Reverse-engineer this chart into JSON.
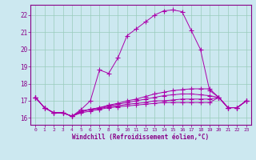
{
  "xlabel": "Windchill (Refroidissement éolien,°C)",
  "background_color": "#cce8f0",
  "grid_color": "#99ccbb",
  "line_color": "#aa00aa",
  "spine_color": "#880088",
  "tick_color": "#880088",
  "xlim": [
    -0.5,
    23.5
  ],
  "ylim": [
    15.6,
    22.6
  ],
  "yticks": [
    16,
    17,
    18,
    19,
    20,
    21,
    22
  ],
  "xticks": [
    0,
    1,
    2,
    3,
    4,
    5,
    6,
    7,
    8,
    9,
    10,
    11,
    12,
    13,
    14,
    15,
    16,
    17,
    18,
    19,
    20,
    21,
    22,
    23
  ],
  "series": [
    [
      17.2,
      16.6,
      16.3,
      16.3,
      16.1,
      16.5,
      17.0,
      18.8,
      18.6,
      19.5,
      20.8,
      21.2,
      21.6,
      22.0,
      22.25,
      22.3,
      22.2,
      21.1,
      20.0,
      17.6,
      17.2,
      16.6,
      16.6,
      17.0
    ],
    [
      17.2,
      16.6,
      16.3,
      16.3,
      16.1,
      16.4,
      16.5,
      16.6,
      16.75,
      16.85,
      17.0,
      17.1,
      17.25,
      17.4,
      17.5,
      17.6,
      17.65,
      17.7,
      17.7,
      17.7,
      17.2,
      16.6,
      16.6,
      17.0
    ],
    [
      17.2,
      16.6,
      16.3,
      16.3,
      16.1,
      16.4,
      16.5,
      16.6,
      16.7,
      16.8,
      16.9,
      17.0,
      17.1,
      17.2,
      17.3,
      17.35,
      17.4,
      17.4,
      17.35,
      17.3,
      17.2,
      16.6,
      16.6,
      17.0
    ],
    [
      17.2,
      16.6,
      16.3,
      16.3,
      16.1,
      16.35,
      16.5,
      16.55,
      16.65,
      16.7,
      16.8,
      16.85,
      16.9,
      17.0,
      17.0,
      17.05,
      17.1,
      17.1,
      17.1,
      17.1,
      17.2,
      16.6,
      16.6,
      17.0
    ],
    [
      17.2,
      16.6,
      16.3,
      16.3,
      16.1,
      16.3,
      16.4,
      16.5,
      16.6,
      16.65,
      16.7,
      16.75,
      16.8,
      16.85,
      16.9,
      16.9,
      16.9,
      16.9,
      16.9,
      16.9,
      17.2,
      16.6,
      16.6,
      17.0
    ]
  ]
}
